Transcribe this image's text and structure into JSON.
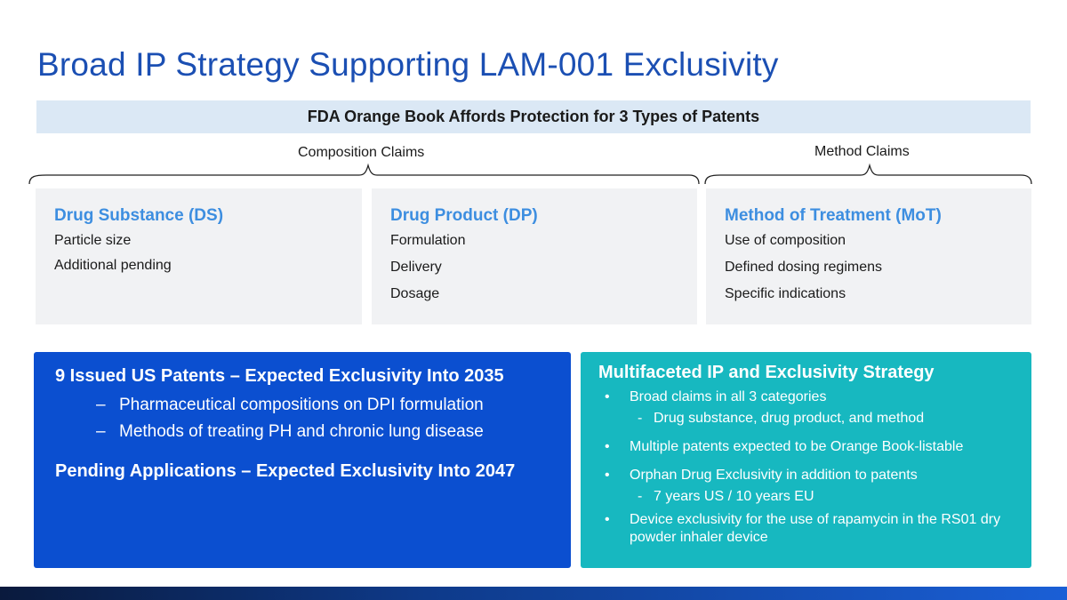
{
  "slide": {
    "title": "Broad IP Strategy Supporting LAM-001 Exclusivity",
    "banner": "FDA Orange Book Affords Protection for 3 Types of Patents",
    "composition_label": "Composition Claims",
    "method_label": "Method Claims"
  },
  "cards": [
    {
      "title": "Drug Substance (DS)",
      "items": [
        "Particle size",
        "Additional pending"
      ]
    },
    {
      "title": "Drug Product (DP)",
      "items": [
        "Formulation",
        "Delivery",
        "Dosage"
      ]
    },
    {
      "title": "Method of Treatment (MoT)",
      "items": [
        "Use of composition",
        "Defined dosing regimens",
        "Specific indications"
      ]
    }
  ],
  "blue_panel": {
    "heading": "9 Issued US Patents – Expected Exclusivity Into 2035",
    "dash": "–",
    "bullets": [
      "Pharmaceutical compositions on DPI formulation",
      "Methods of treating PH and chronic lung disease"
    ],
    "heading2": "Pending Applications – Expected Exclusivity Into 2047"
  },
  "teal_panel": {
    "heading": "Multifaceted IP and Exclusivity Strategy",
    "dot": "•",
    "subdash": "-",
    "b1": "Broad claims in all 3 categories",
    "b1_sub": "Drug substance, drug product, and method",
    "b2": "Multiple patents expected to be Orange Book-listable",
    "b3": "Orphan Drug Exclusivity in addition to patents",
    "b3_sub": "7 years US / 10 years EU",
    "b4": "Device exclusivity for the use of rapamycin in the RS01 dry powder inhaler device"
  },
  "colors": {
    "title": "#1b4fb3",
    "banner_bg": "#dbe8f5",
    "card_title": "#3d8ee0",
    "blue_panel": "#0b4fd0",
    "teal_panel": "#17b8c0"
  }
}
